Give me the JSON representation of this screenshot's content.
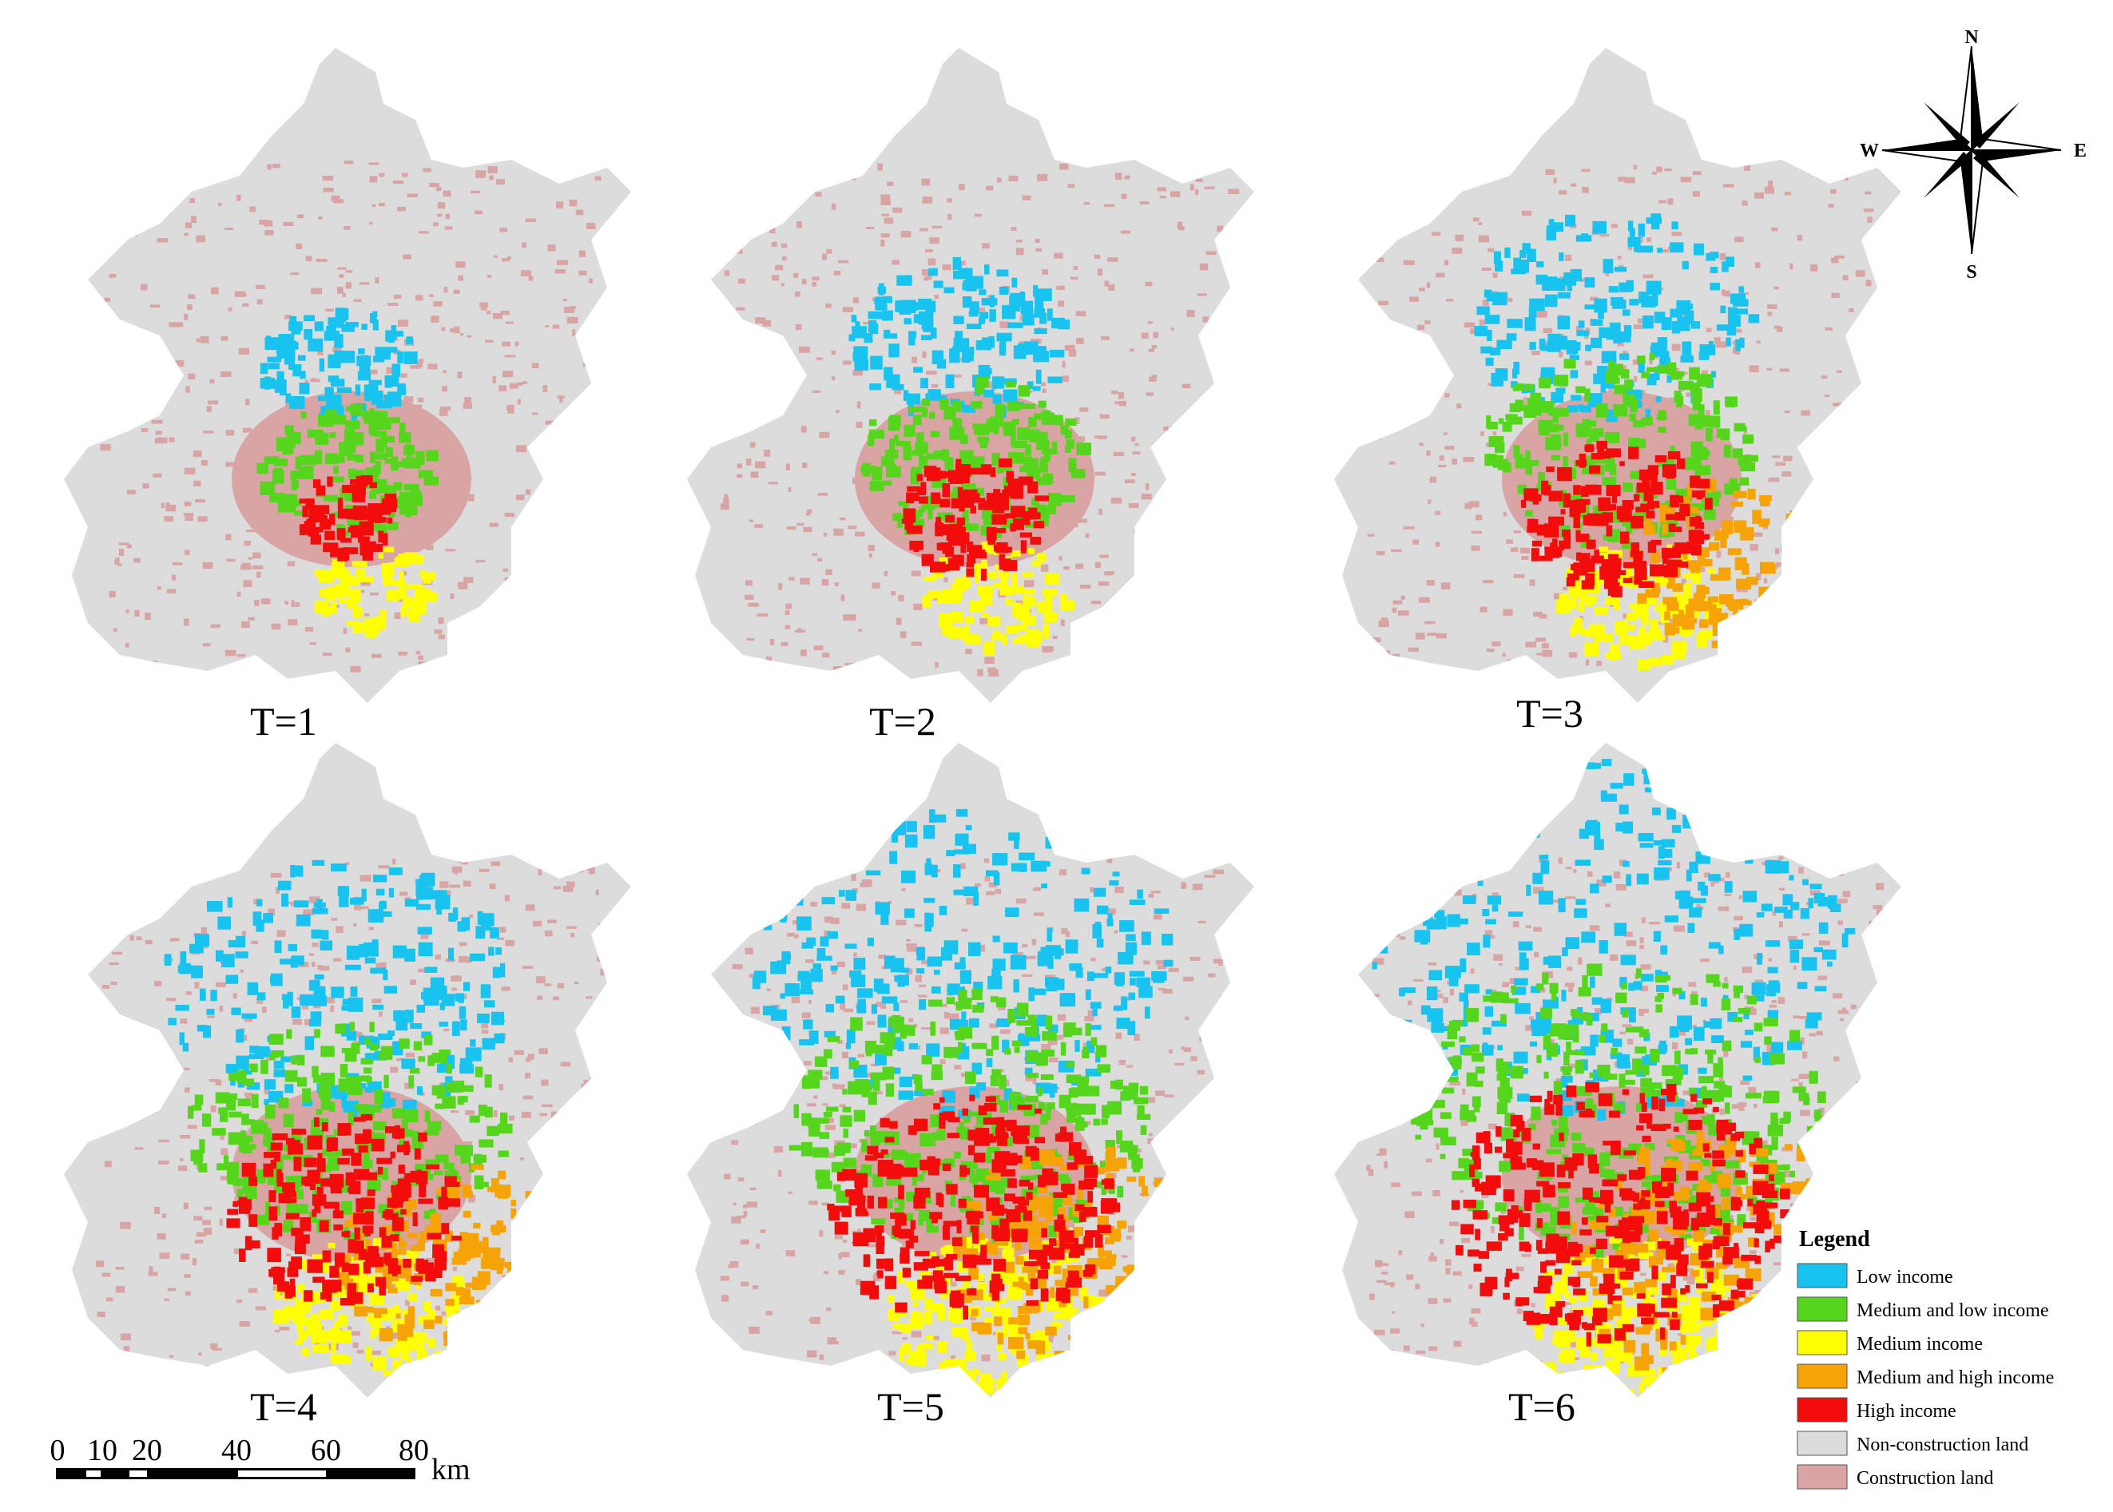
{
  "panels": [
    {
      "label": "T=1",
      "zones": [
        "low",
        "medium_low",
        "medium",
        "high"
      ],
      "stage": 1
    },
    {
      "label": "T=2",
      "zones": [
        "low",
        "medium_low",
        "medium",
        "high"
      ],
      "stage": 2
    },
    {
      "label": "T=3",
      "zones": [
        "low",
        "medium_low",
        "medium",
        "medium_high",
        "high"
      ],
      "stage": 3
    },
    {
      "label": "T=4",
      "zones": [
        "low",
        "medium_low",
        "medium",
        "medium_high",
        "high"
      ],
      "stage": 4
    },
    {
      "label": "T=5",
      "zones": [
        "low",
        "medium_low",
        "medium",
        "medium_high",
        "high"
      ],
      "stage": 5
    },
    {
      "label": "T=6",
      "zones": [
        "low",
        "medium_low",
        "medium",
        "medium_high",
        "high"
      ],
      "stage": 6
    }
  ],
  "legend": {
    "title": "Legend",
    "items": [
      {
        "key": "low",
        "label": "Low income",
        "color": "#19c3ef"
      },
      {
        "key": "medium_low",
        "label": "Medium and low income",
        "color": "#55d61c"
      },
      {
        "key": "medium",
        "label": "Medium income",
        "color": "#ffff00"
      },
      {
        "key": "medium_high",
        "label": "Medium and high income",
        "color": "#f5a306"
      },
      {
        "key": "high",
        "label": "High income",
        "color": "#f20c0c"
      },
      {
        "key": "non_construction",
        "label": "Non-construction land",
        "color": "#dcdcdc"
      },
      {
        "key": "construction",
        "label": "Construction land",
        "color": "#d8a4a4"
      }
    ]
  },
  "scale_bar": {
    "ticks": [
      "0",
      "10",
      "20",
      "40",
      "60",
      "80"
    ],
    "unit": "km"
  },
  "compass": {
    "n": "N",
    "s": "S",
    "e": "E",
    "w": "W"
  }
}
